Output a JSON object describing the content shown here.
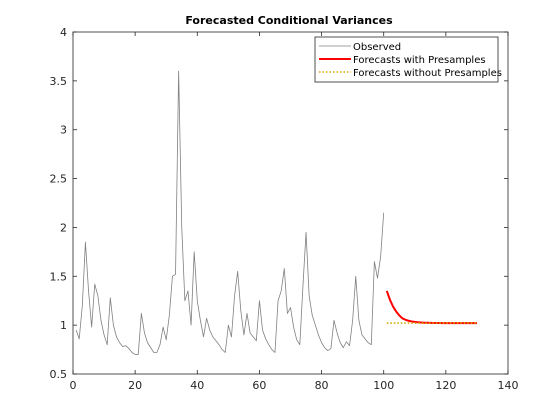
{
  "chart_data": {
    "type": "line",
    "title": "Forecasted Conditional Variances",
    "xlabel": "",
    "ylabel": "",
    "xlim": [
      0,
      140
    ],
    "ylim": [
      0.5,
      4
    ],
    "xticks": [
      "0",
      "20",
      "40",
      "60",
      "80",
      "100",
      "120",
      "140"
    ],
    "yticks": [
      "0.5",
      "1",
      "1.5",
      "2",
      "2.5",
      "3",
      "3.5",
      "4"
    ],
    "grid": false,
    "legend_position": "top-right",
    "series": [
      {
        "name": "Observed",
        "color": "#808080",
        "style": "solid",
        "x": [
          1,
          2,
          3,
          4,
          5,
          6,
          7,
          8,
          9,
          10,
          11,
          12,
          13,
          14,
          15,
          16,
          17,
          18,
          19,
          20,
          21,
          22,
          23,
          24,
          25,
          26,
          27,
          28,
          29,
          30,
          31,
          32,
          33,
          34,
          35,
          36,
          37,
          38,
          39,
          40,
          41,
          42,
          43,
          44,
          45,
          46,
          47,
          48,
          49,
          50,
          51,
          52,
          53,
          54,
          55,
          56,
          57,
          58,
          59,
          60,
          61,
          62,
          63,
          64,
          65,
          66,
          67,
          68,
          69,
          70,
          71,
          72,
          73,
          74,
          75,
          76,
          77,
          78,
          79,
          80,
          81,
          82,
          83,
          84,
          85,
          86,
          87,
          88,
          89,
          90,
          91,
          92,
          93,
          94,
          95,
          96,
          97,
          98,
          99,
          100
        ],
        "y": [
          0.95,
          0.86,
          1.2,
          1.85,
          1.35,
          0.98,
          1.42,
          1.3,
          1.05,
          0.9,
          0.8,
          1.28,
          1.0,
          0.88,
          0.82,
          0.78,
          0.79,
          0.76,
          0.72,
          0.7,
          0.7,
          1.12,
          0.92,
          0.82,
          0.77,
          0.72,
          0.72,
          0.8,
          0.98,
          0.85,
          1.1,
          1.5,
          1.52,
          3.6,
          2.0,
          1.25,
          1.35,
          1.0,
          1.75,
          1.25,
          1.05,
          0.88,
          1.07,
          0.95,
          0.88,
          0.84,
          0.8,
          0.75,
          0.72,
          1.0,
          0.88,
          1.3,
          1.55,
          1.15,
          0.9,
          1.12,
          0.92,
          0.88,
          0.84,
          1.25,
          0.95,
          0.86,
          0.8,
          0.75,
          0.72,
          1.25,
          1.35,
          1.58,
          1.12,
          1.18,
          0.98,
          0.85,
          0.8,
          1.4,
          1.95,
          1.3,
          1.1,
          1.0,
          0.9,
          0.82,
          0.77,
          0.74,
          0.76,
          1.05,
          0.92,
          0.82,
          0.77,
          0.83,
          0.79,
          1.05,
          1.5,
          1.05,
          0.9,
          0.86,
          0.82,
          0.8,
          1.65,
          1.48,
          1.7,
          2.15
        ]
      },
      {
        "name": "Forecasts with Presamples",
        "color": "#ff0000",
        "style": "solid",
        "x": [
          101,
          102,
          103,
          104,
          105,
          106,
          107,
          108,
          109,
          110,
          111,
          112,
          113,
          114,
          115,
          116,
          117,
          118,
          119,
          120,
          121,
          122,
          123,
          124,
          125,
          126,
          127,
          128,
          129,
          130
        ],
        "y": [
          1.35,
          1.26,
          1.19,
          1.14,
          1.1,
          1.07,
          1.055,
          1.045,
          1.038,
          1.033,
          1.029,
          1.027,
          1.025,
          1.024,
          1.023,
          1.022,
          1.022,
          1.022,
          1.021,
          1.021,
          1.021,
          1.021,
          1.021,
          1.021,
          1.021,
          1.021,
          1.021,
          1.021,
          1.021,
          1.021
        ]
      },
      {
        "name": "Forecasts without Presamples",
        "color": "#d4a800",
        "style": "dotted",
        "x": [
          101,
          102,
          103,
          104,
          105,
          106,
          107,
          108,
          109,
          110,
          111,
          112,
          113,
          114,
          115,
          116,
          117,
          118,
          119,
          120,
          121,
          122,
          123,
          124,
          125,
          126,
          127,
          128,
          129,
          130
        ],
        "y": [
          1.021,
          1.021,
          1.021,
          1.021,
          1.021,
          1.021,
          1.021,
          1.021,
          1.021,
          1.021,
          1.021,
          1.021,
          1.021,
          1.021,
          1.021,
          1.021,
          1.021,
          1.021,
          1.021,
          1.021,
          1.021,
          1.021,
          1.021,
          1.021,
          1.021,
          1.021,
          1.021,
          1.021,
          1.021,
          1.021
        ]
      }
    ]
  }
}
